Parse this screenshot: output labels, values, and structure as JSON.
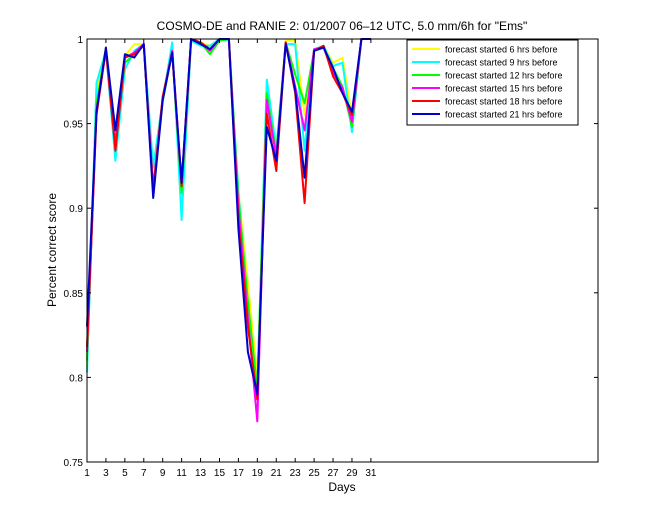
{
  "chart_data": {
    "type": "line",
    "title": "COSMO-DE and RANIE 2: 01/2007 06–12 UTC, 5.0 mm/6h for \"Ems\"",
    "xlabel": "Days",
    "ylabel": "Percent correct score",
    "xlim": [
      1,
      55
    ],
    "ylim": [
      0.75,
      1.0
    ],
    "xticks": [
      1,
      3,
      5,
      7,
      9,
      11,
      13,
      15,
      17,
      19,
      21,
      23,
      25,
      27,
      29,
      31
    ],
    "yticks": [
      0.75,
      0.8,
      0.85,
      0.9,
      0.95,
      1.0
    ],
    "ytick_labels": [
      "0.75",
      "0.8",
      "0.85",
      "0.9",
      "0.95",
      "1"
    ],
    "grid": false,
    "legend_position": "top-right",
    "x": [
      1,
      2,
      3,
      4,
      5,
      6,
      7,
      8,
      9,
      10,
      11,
      12,
      13,
      14,
      15,
      16,
      17,
      18,
      19,
      20,
      21,
      22,
      23,
      24,
      25,
      26,
      27,
      28,
      29,
      30,
      31
    ],
    "series": [
      {
        "name": "forecast started 6 hrs before",
        "color": "#ffff00",
        "values": [
          0.806,
          0.968,
          0.995,
          0.936,
          0.99,
          0.997,
          0.997,
          0.924,
          0.964,
          0.992,
          0.905,
          1.0,
          0.998,
          0.996,
          1.0,
          1.0,
          0.91,
          0.855,
          0.8,
          0.962,
          0.934,
          0.999,
          0.999,
          0.955,
          0.994,
          0.996,
          0.986,
          0.989,
          0.954,
          1.0,
          1.0
        ]
      },
      {
        "name": "forecast started 9 hrs before",
        "color": "#00ffff",
        "values": [
          0.803,
          0.974,
          0.993,
          0.928,
          0.982,
          0.993,
          0.997,
          0.924,
          0.964,
          0.998,
          0.893,
          0.999,
          0.996,
          0.996,
          1.0,
          0.999,
          0.91,
          0.84,
          0.793,
          0.976,
          0.935,
          0.997,
          0.997,
          0.934,
          0.994,
          0.996,
          0.984,
          0.986,
          0.945,
          1.0,
          1.0
        ]
      },
      {
        "name": "forecast started 12 hrs before",
        "color": "#00ff00",
        "values": [
          0.81,
          0.962,
          0.994,
          0.938,
          0.986,
          0.991,
          0.997,
          0.912,
          0.963,
          0.993,
          0.909,
          0.999,
          0.998,
          0.991,
          0.999,
          1.0,
          0.906,
          0.845,
          0.793,
          0.968,
          0.932,
          0.998,
          0.979,
          0.962,
          0.993,
          0.995,
          0.983,
          0.972,
          0.948,
          1.0,
          1.0
        ]
      },
      {
        "name": "forecast started 15 hrs before",
        "color": "#ff00ff",
        "values": [
          0.815,
          0.958,
          0.993,
          0.938,
          0.989,
          0.992,
          0.997,
          0.912,
          0.965,
          0.993,
          0.915,
          1.0,
          0.998,
          0.993,
          1.0,
          1.0,
          0.9,
          0.835,
          0.774,
          0.964,
          0.93,
          0.998,
          0.972,
          0.946,
          0.994,
          0.995,
          0.98,
          0.971,
          0.951,
          1.0,
          1.0
        ]
      },
      {
        "name": "forecast started 18 hrs before",
        "color": "#ff0000",
        "values": [
          0.818,
          0.955,
          0.994,
          0.934,
          0.989,
          0.991,
          0.996,
          0.91,
          0.966,
          0.992,
          0.913,
          1.0,
          0.998,
          0.994,
          1.0,
          1.0,
          0.893,
          0.83,
          0.787,
          0.956,
          0.922,
          0.998,
          0.968,
          0.903,
          0.993,
          0.996,
          0.978,
          0.968,
          0.955,
          1.0,
          1.0
        ]
      },
      {
        "name": "forecast started 21 hrs before",
        "color": "#0000cc",
        "values": [
          0.83,
          0.957,
          0.995,
          0.946,
          0.991,
          0.989,
          0.997,
          0.906,
          0.964,
          0.992,
          0.915,
          1.0,
          0.997,
          0.994,
          1.0,
          1.0,
          0.888,
          0.815,
          0.79,
          0.948,
          0.928,
          0.997,
          0.97,
          0.918,
          0.993,
          0.995,
          0.983,
          0.968,
          0.957,
          1.0,
          1.0
        ]
      }
    ]
  }
}
